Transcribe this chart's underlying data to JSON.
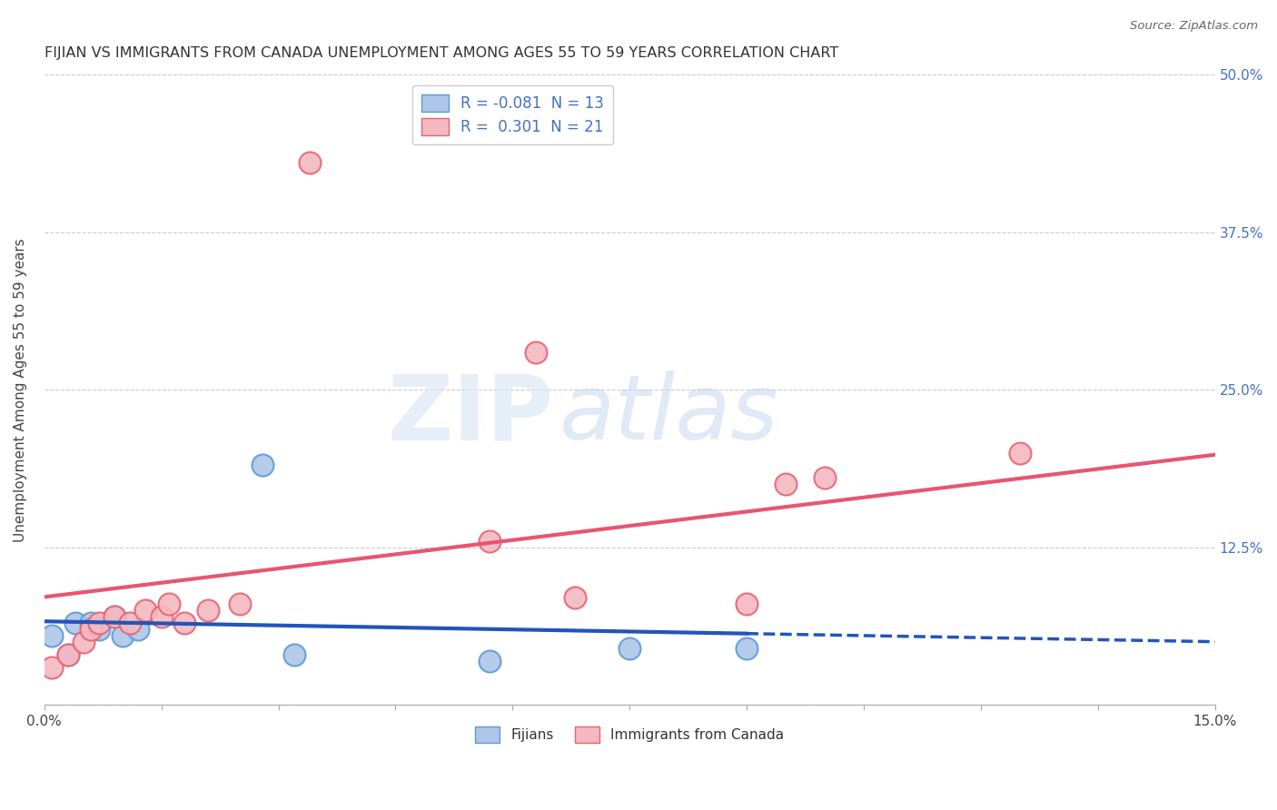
{
  "title": "FIJIAN VS IMMIGRANTS FROM CANADA UNEMPLOYMENT AMONG AGES 55 TO 59 YEARS CORRELATION CHART",
  "source": "Source: ZipAtlas.com",
  "ylabel": "Unemployment Among Ages 55 to 59 years",
  "xlim": [
    0.0,
    0.15
  ],
  "ylim": [
    0.0,
    0.5
  ],
  "xticks": [
    0.0,
    0.015,
    0.03,
    0.045,
    0.06,
    0.075,
    0.09,
    0.105,
    0.12,
    0.135,
    0.15
  ],
  "ytick_labels_right": [
    "",
    "12.5%",
    "25.0%",
    "37.5%",
    "50.0%"
  ],
  "yticks_right": [
    0.0,
    0.125,
    0.25,
    0.375,
    0.5
  ],
  "fijian_color": "#aec6e8",
  "fijian_edge_color": "#5b9bd5",
  "canada_color": "#f4b8c1",
  "canada_edge_color": "#e8636f",
  "fijian_R": -0.081,
  "fijian_N": 13,
  "canada_R": 0.301,
  "canada_N": 21,
  "fijian_line_color": "#2255bb",
  "canada_line_color": "#e85570",
  "background_color": "#ffffff",
  "fijian_x": [
    0.001,
    0.003,
    0.004,
    0.006,
    0.007,
    0.009,
    0.01,
    0.012,
    0.028,
    0.032,
    0.057,
    0.075,
    0.09
  ],
  "fijian_y": [
    0.055,
    0.04,
    0.065,
    0.065,
    0.06,
    0.07,
    0.055,
    0.06,
    0.19,
    0.04,
    0.035,
    0.045,
    0.045
  ],
  "canada_x": [
    0.001,
    0.003,
    0.005,
    0.006,
    0.007,
    0.009,
    0.011,
    0.013,
    0.015,
    0.016,
    0.018,
    0.021,
    0.025,
    0.034,
    0.057,
    0.063,
    0.068,
    0.09,
    0.095,
    0.1,
    0.125
  ],
  "canada_y": [
    0.03,
    0.04,
    0.05,
    0.06,
    0.065,
    0.07,
    0.065,
    0.075,
    0.07,
    0.08,
    0.065,
    0.075,
    0.08,
    0.43,
    0.13,
    0.28,
    0.085,
    0.08,
    0.175,
    0.18,
    0.2
  ]
}
